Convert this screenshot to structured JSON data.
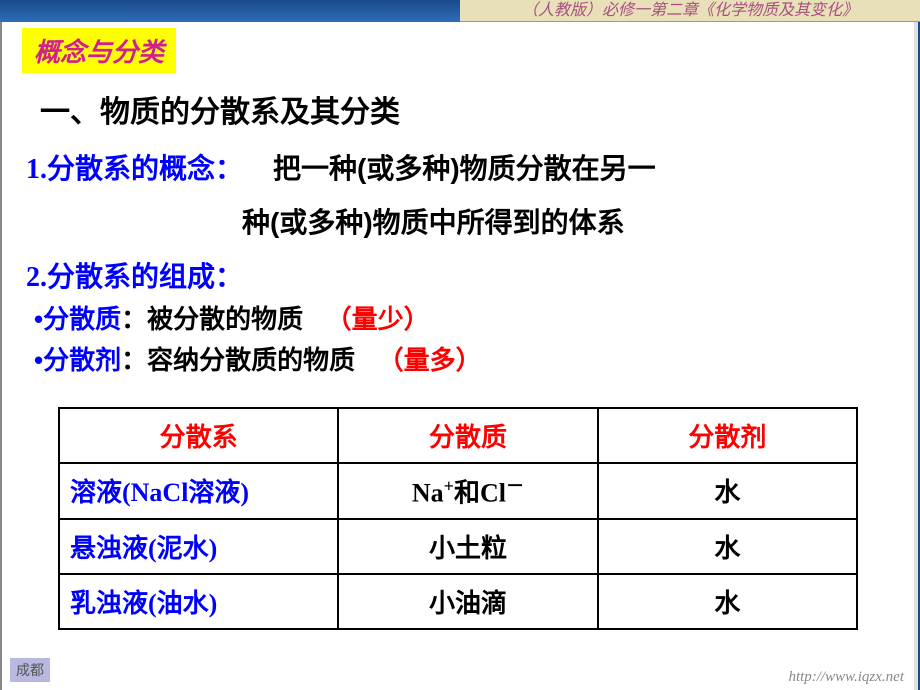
{
  "header": {
    "left_fragment": "",
    "right_text": "（人教版）必修一第二章《化学物质及其变化》"
  },
  "tag_label": "概念与分类",
  "section_title": "一、物质的分散系及其分类",
  "concept1": {
    "label": "1.分散系的概念：",
    "definition_pt1": "把一种(或多种)物质分散在另一",
    "definition_pt2": "种(或多种)物质中所得到的体系"
  },
  "concept2": {
    "label": "2.分散系的组成：",
    "bullets": [
      {
        "term": "分散质",
        "desc": "：被分散的物质",
        "note": "（量少）"
      },
      {
        "term": "分散剂",
        "desc": "：容纳分散质的物质",
        "note": "（量多）"
      }
    ]
  },
  "table": {
    "headers": [
      "分散系",
      "分散质",
      "分散剂"
    ],
    "rows": [
      {
        "system": "溶液(NaCl溶液)",
        "solute_html": "Na<sup>+</sup>和Cl<sup>－</sup>",
        "solvent": "水"
      },
      {
        "system": "悬浊液(泥水)",
        "solute_html": "小土粒",
        "solvent": "水"
      },
      {
        "system": "乳浊液(油水)",
        "solute_html": "小油滴",
        "solvent": "水"
      }
    ]
  },
  "footer": {
    "left": "成都",
    "right": "http://www.iqzx.net"
  },
  "colors": {
    "tag_bg": "#ffff00",
    "tag_fg": "#d02090",
    "blue": "#0000ff",
    "red": "#ff0000",
    "top_left_bg": "#2d6db8",
    "top_right_bg": "#e8e0b8",
    "top_right_fg": "#a85080"
  }
}
